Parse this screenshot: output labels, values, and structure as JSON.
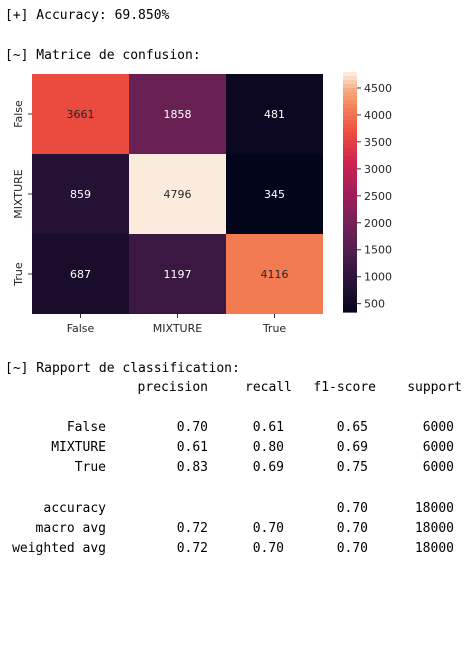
{
  "console": {
    "accuracy_line": "[+] Accuracy: 69.850%",
    "matrix_header": "[~] Matrice de confusion:",
    "report_header": "[~] Rapport de classification:"
  },
  "chart_data": {
    "type": "heatmap",
    "xlabels": [
      "False",
      "MIXTURE",
      "True"
    ],
    "ylabels": [
      "False",
      "MIXTURE",
      "True"
    ],
    "values": [
      [
        3661,
        1858,
        481
      ],
      [
        859,
        4796,
        345
      ],
      [
        687,
        1197,
        4116
      ]
    ],
    "colorbar": {
      "ticks": [
        500,
        1000,
        1500,
        2000,
        2500,
        3000,
        3500,
        4000,
        4500
      ],
      "min": 345,
      "max": 4796,
      "colormap": "rocket"
    }
  },
  "report": {
    "columns": [
      "precision",
      "recall",
      "f1-score",
      "support"
    ],
    "class_rows": [
      {
        "label": "False",
        "precision": "0.70",
        "recall": "0.61",
        "f1": "0.65",
        "support": "6000"
      },
      {
        "label": "MIXTURE",
        "precision": "0.61",
        "recall": "0.80",
        "f1": "0.69",
        "support": "6000"
      },
      {
        "label": "True",
        "precision": "0.83",
        "recall": "0.69",
        "f1": "0.75",
        "support": "6000"
      }
    ],
    "summary_rows": [
      {
        "label": "accuracy",
        "precision": "",
        "recall": "",
        "f1": "0.70",
        "support": "18000"
      },
      {
        "label": "macro avg",
        "precision": "0.72",
        "recall": "0.70",
        "f1": "0.70",
        "support": "18000"
      },
      {
        "label": "weighted avg",
        "precision": "0.72",
        "recall": "0.70",
        "f1": "0.70",
        "support": "18000"
      }
    ]
  }
}
